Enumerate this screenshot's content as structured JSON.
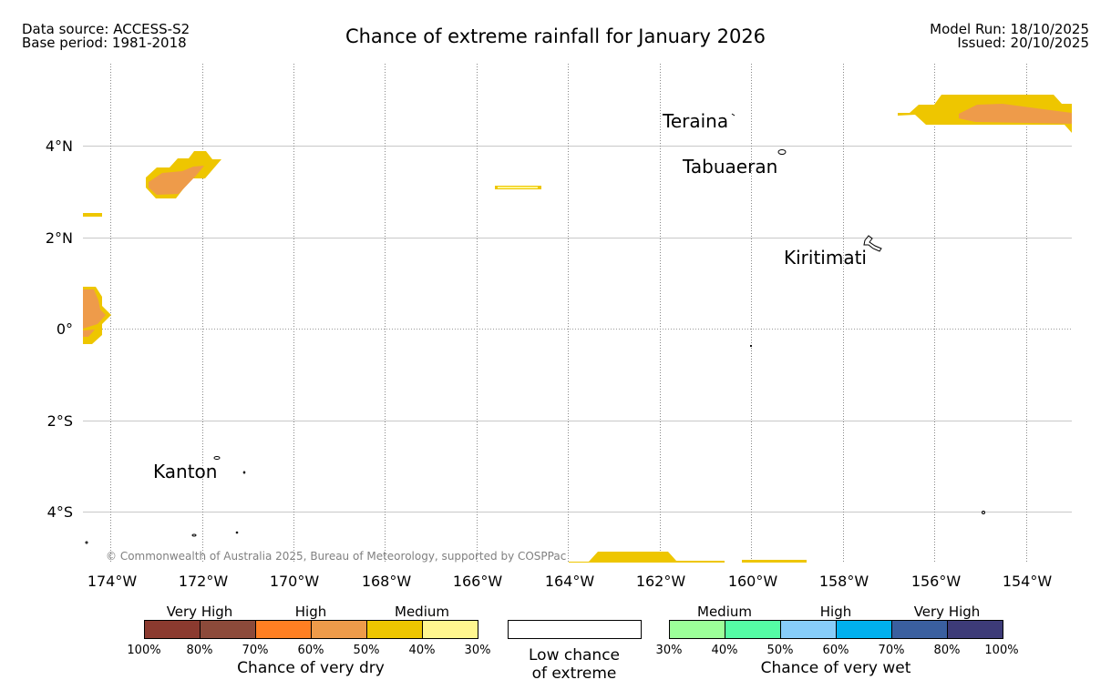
{
  "header": {
    "data_source": "Data source: ACCESS-S2",
    "base_period": "Base period: 1981-2018",
    "title": "Chance of extreme rainfall for January 2026",
    "model_run": "Model Run: 18/10/2025",
    "issued": "Issued: 20/10/2025"
  },
  "map": {
    "lat_labels": [
      "4°N",
      "2°N",
      "0°",
      "2°S",
      "4°S"
    ],
    "lon_labels": [
      "174°W",
      "172°W",
      "170°W",
      "168°W",
      "166°W",
      "164°W",
      "162°W",
      "160°W",
      "158°W",
      "156°W",
      "154°W"
    ],
    "places": [
      "Teraina",
      "Tabuaeran",
      "Kiritimati",
      "Kanton"
    ],
    "copyright": "© Commonwealth of Australia 2025, Bureau of Meteorology, supported by COSPPac",
    "colors": {
      "medium_dry": "#eec600",
      "high_dry": "#ee9b4a",
      "low_dry": "#fff68f"
    }
  },
  "legend": {
    "dry": {
      "categories": [
        "Very High",
        "High",
        "Medium"
      ],
      "ticks": [
        "100%",
        "80%",
        "70%",
        "60%",
        "50%",
        "40%",
        "30%"
      ],
      "colors": [
        "#8b3a2f",
        "#8c4a3a",
        "#ff7f22",
        "#ee9b4a",
        "#eec600",
        "#fff68f"
      ],
      "caption": "Chance of very dry"
    },
    "neutral": {
      "line1": "Low chance",
      "line2": "of extreme"
    },
    "wet": {
      "categories": [
        "Medium",
        "High",
        "Very High"
      ],
      "ticks": [
        "30%",
        "40%",
        "50%",
        "60%",
        "70%",
        "80%",
        "100%"
      ],
      "colors": [
        "#9cff99",
        "#55fca5",
        "#87cdf9",
        "#00b0ee",
        "#3a5f9f",
        "#3d3b78"
      ],
      "caption": "Chance of very wet"
    }
  }
}
